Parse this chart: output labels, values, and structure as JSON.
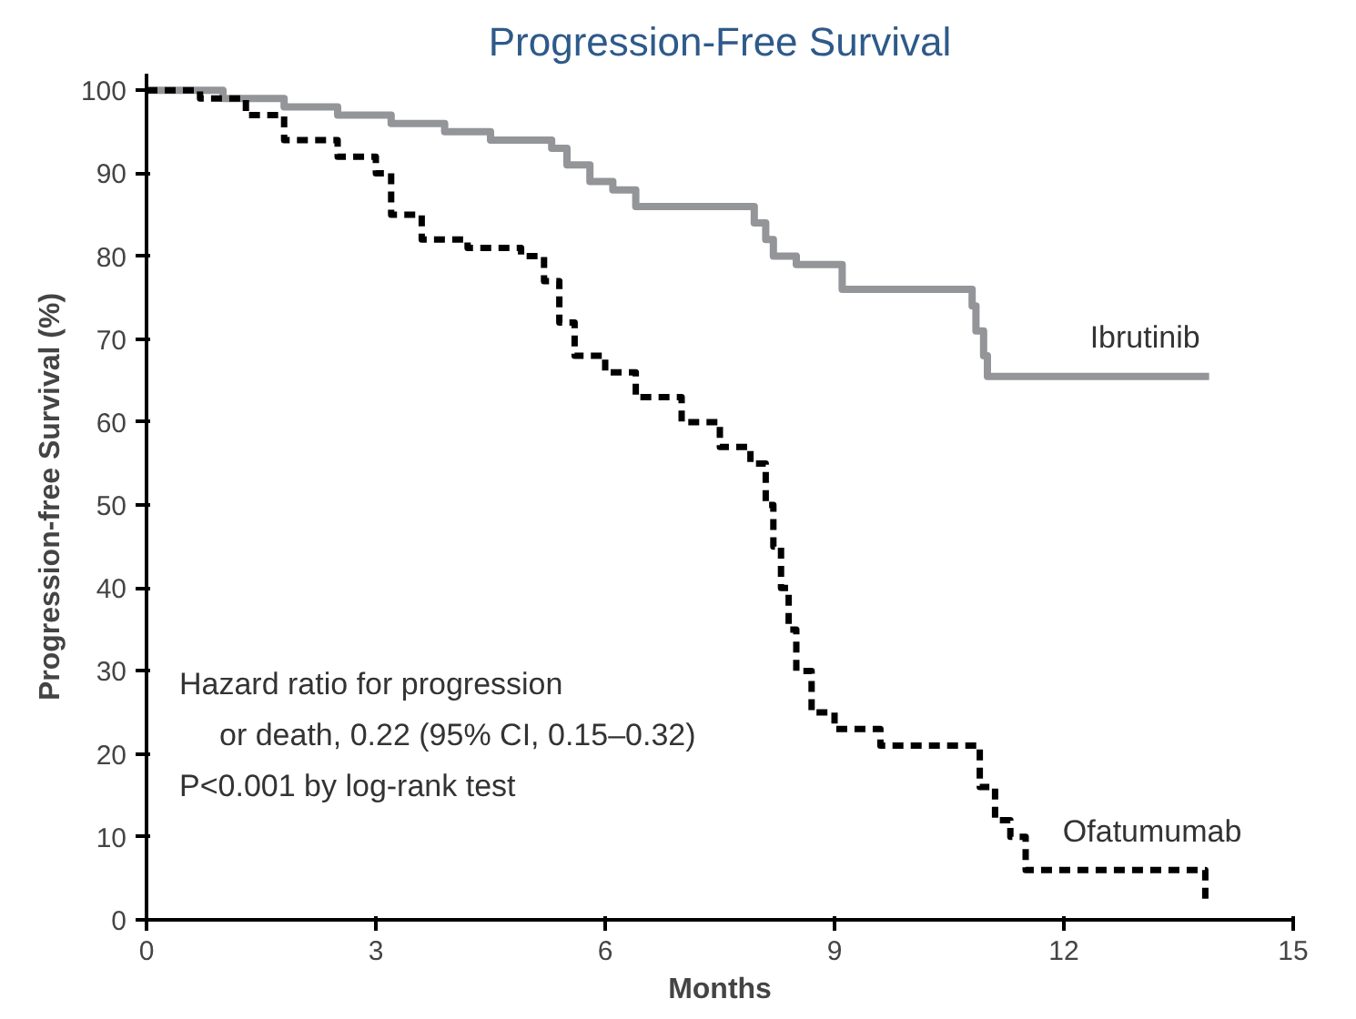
{
  "chart_data": {
    "type": "step",
    "title": "Progression-Free Survival",
    "xlabel": "Months",
    "ylabel": "Progression-free Survival (%)",
    "xlim": [
      0,
      15
    ],
    "xticks": [
      0,
      3,
      6,
      9,
      12,
      15
    ],
    "ylim": [
      0,
      102
    ],
    "yticks": [
      0,
      10,
      20,
      30,
      40,
      50,
      60,
      70,
      80,
      90,
      100
    ],
    "grid": false,
    "marker": "none",
    "series": [
      {
        "name": "Ibrutinib",
        "color": "#939598",
        "line_style": "solid",
        "x": [
          0,
          1.0,
          1.8,
          2.5,
          3.2,
          3.9,
          4.5,
          5.3,
          5.5,
          5.8,
          6.1,
          6.4,
          7.8,
          7.95,
          8.1,
          8.2,
          8.5,
          9.1,
          10.8,
          10.85,
          10.95,
          11.0,
          13.9
        ],
        "values": [
          100,
          99,
          98,
          97,
          96,
          95,
          94,
          93,
          91,
          89,
          88,
          86,
          86,
          84,
          82,
          80,
          79,
          76,
          74,
          71,
          68,
          65.5,
          65.5
        ]
      },
      {
        "name": "Ofatumumab",
        "color": "#000000",
        "line_style": "dashed",
        "x": [
          0,
          0.7,
          1.3,
          1.8,
          2.5,
          3.0,
          3.2,
          3.6,
          4.2,
          4.9,
          5.2,
          5.4,
          5.6,
          6.0,
          6.4,
          7.0,
          7.5,
          7.9,
          8.1,
          8.2,
          8.3,
          8.4,
          8.5,
          8.7,
          9.0,
          9.6,
          10.7,
          10.9,
          11.1,
          11.3,
          11.5,
          13.8,
          13.85
        ],
        "values": [
          100,
          99,
          97,
          94,
          92,
          90,
          85,
          82,
          81,
          80,
          77,
          72,
          68,
          66,
          63,
          60,
          57,
          55,
          50,
          45,
          40,
          35,
          30,
          25,
          23,
          21,
          21,
          16,
          12,
          10,
          6,
          6,
          2
        ]
      }
    ],
    "annotations": [
      "Hazard ratio for progression",
      "or death, 0.22 (95% CI, 0.15–0.32)",
      "P<0.001 by log-rank test"
    ]
  }
}
